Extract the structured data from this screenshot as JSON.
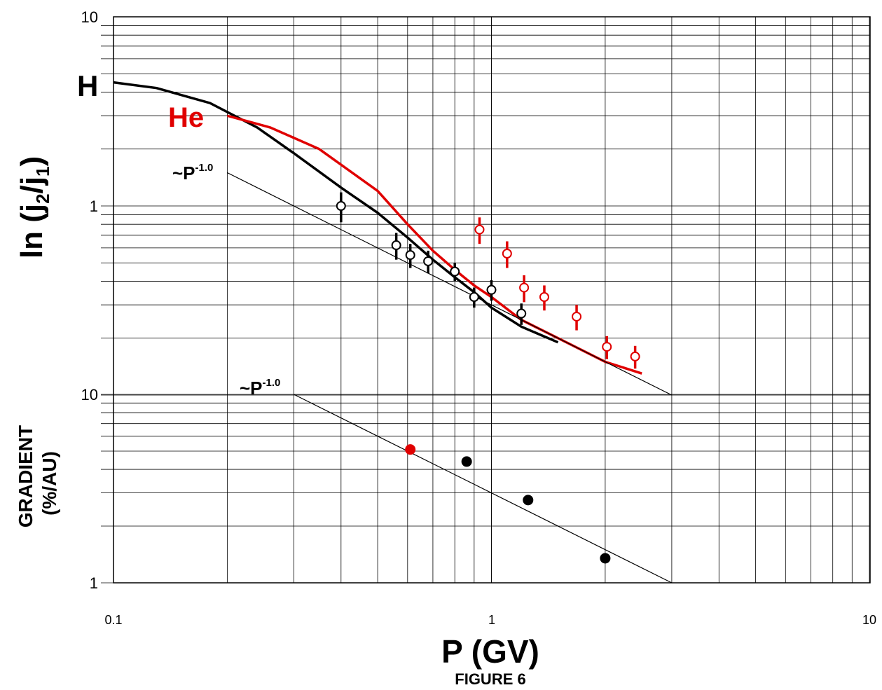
{
  "chart_data": {
    "type": "scatter",
    "x_axis": {
      "label": "P (GV)",
      "scale": "log",
      "range": [
        0.1,
        10
      ],
      "tick_labels": [
        "0.1",
        "1",
        "10"
      ]
    },
    "caption": "FIGURE 6",
    "grid": true,
    "panels": [
      {
        "id": "upper",
        "ylabel_main": "ln (j",
        "ylabel_sub2": "2",
        "ylabel_mid": "/j",
        "ylabel_sub1": "1",
        "ylabel_end": ")",
        "y_scale": "log",
        "y_range": [
          0.1,
          10
        ],
        "tick_labels": [
          "10",
          "1"
        ],
        "curve_labels": {
          "H": "H",
          "He": "He"
        },
        "trend_label": {
          "base": "~P",
          "exp": "-1.0"
        },
        "series": [
          {
            "name": "H",
            "kind": "model-line",
            "color": "#000000",
            "x": [
              0.1,
              0.13,
              0.18,
              0.24,
              0.3,
              0.4,
              0.5,
              0.6,
              0.7,
              0.8,
              0.9,
              1.0,
              1.2,
              1.5
            ],
            "y": [
              4.5,
              4.2,
              3.5,
              2.6,
              1.9,
              1.25,
              0.92,
              0.68,
              0.52,
              0.42,
              0.35,
              0.29,
              0.23,
              0.19
            ]
          },
          {
            "name": "He",
            "kind": "model-line",
            "color": "#e00000",
            "x": [
              0.2,
              0.26,
              0.35,
              0.5,
              0.6,
              0.7,
              0.8,
              0.9,
              1.0,
              1.2,
              1.5,
              2.0,
              2.5
            ],
            "y": [
              3.0,
              2.6,
              2.0,
              1.2,
              0.8,
              0.58,
              0.46,
              0.38,
              0.33,
              0.25,
              0.2,
              0.15,
              0.13
            ]
          },
          {
            "name": "trend",
            "kind": "reference-line",
            "color": "#000000",
            "x": [
              0.2,
              3.0
            ],
            "y": [
              1.5,
              0.1
            ]
          },
          {
            "name": "H",
            "kind": "data-points",
            "color": "#000000",
            "x": [
              0.4,
              0.56,
              0.61,
              0.68,
              0.8,
              0.9,
              1.0,
              1.2
            ],
            "y": [
              1.0,
              0.62,
              0.55,
              0.51,
              0.45,
              0.33,
              0.36,
              0.27
            ],
            "err": [
              0.18,
              0.1,
              0.08,
              0.07,
              0.05,
              0.04,
              0.045,
              0.035
            ]
          },
          {
            "name": "He",
            "kind": "data-points",
            "color": "#e00000",
            "x": [
              0.93,
              1.1,
              1.22,
              1.38,
              1.68,
              2.02,
              2.4
            ],
            "y": [
              0.75,
              0.56,
              0.37,
              0.33,
              0.26,
              0.18,
              0.16
            ],
            "err": [
              0.12,
              0.09,
              0.06,
              0.05,
              0.04,
              0.025,
              0.022
            ]
          }
        ]
      },
      {
        "id": "lower",
        "ylabel_line1": "GRADIENT",
        "ylabel_line2": "(%/AU)",
        "y_scale": "log",
        "y_range": [
          1,
          10
        ],
        "tick_labels": [
          "10",
          "1"
        ],
        "trend_label": {
          "base": "~P",
          "exp": "-1.0"
        },
        "series": [
          {
            "name": "trend",
            "kind": "reference-line",
            "color": "#000000",
            "x": [
              0.3,
              3.0
            ],
            "y": [
              10,
              1
            ]
          },
          {
            "name": "He",
            "kind": "data-points",
            "color": "#e00000",
            "x": [
              0.61
            ],
            "y": [
              5.1
            ]
          },
          {
            "name": "H",
            "kind": "data-points",
            "color": "#000000",
            "x": [
              0.86,
              1.25,
              2.0
            ],
            "y": [
              4.4,
              2.75,
              1.35
            ]
          }
        ]
      }
    ]
  }
}
